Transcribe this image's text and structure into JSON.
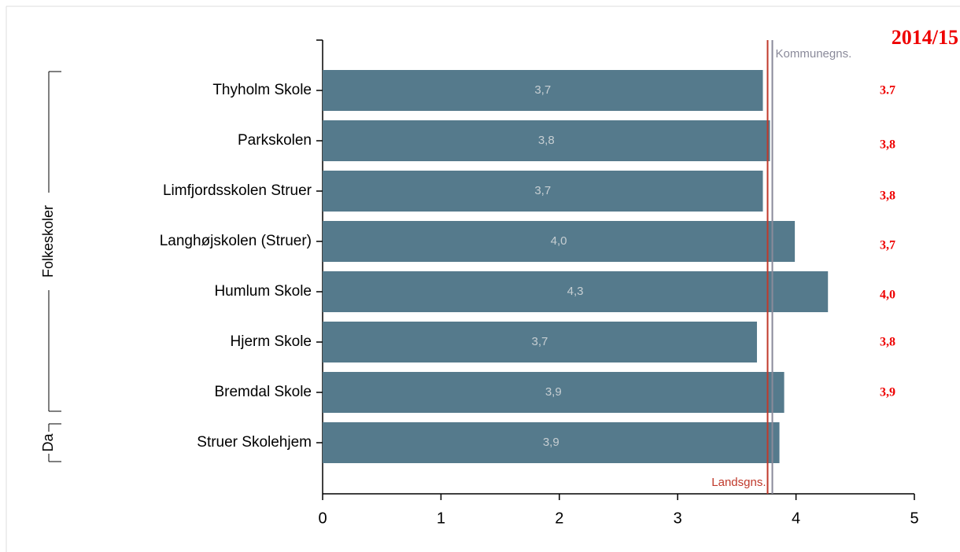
{
  "chart_data": {
    "type": "barh",
    "title": "2014/15",
    "categories": [
      "Thyholm Skole",
      "Parkskolen",
      "Limfjordsskolen Struer",
      "Langhøjskolen (Struer)",
      "Humlum Skole",
      "Hjerm Skole",
      "Bremdal Skole",
      "Struer Skolehjem"
    ],
    "values": [
      3.72,
      3.78,
      3.72,
      3.99,
      4.27,
      3.67,
      3.9,
      3.86
    ],
    "value_labels": [
      "3,7",
      "3,8",
      "3,7",
      "4,0",
      "4,3",
      "3,7",
      "3,9",
      "3,9"
    ],
    "color": "#557a8c",
    "groups": [
      "Folkeskoler",
      "Da"
    ],
    "reference_lines": [
      {
        "name": "Landsgns.",
        "value": 3.76,
        "color": "#c0392b"
      },
      {
        "name": "Kommunegns.",
        "value": 3.8,
        "color": "#8a8a9a"
      }
    ],
    "side_annotations": [
      "3.7",
      "3,8",
      "3,8",
      "3,7",
      "4,0",
      "3,8",
      "3,9"
    ],
    "annotation_color": "#ee0000",
    "xlim": [
      0,
      5
    ],
    "xticks": [
      0,
      1,
      2,
      3,
      4,
      5
    ]
  }
}
